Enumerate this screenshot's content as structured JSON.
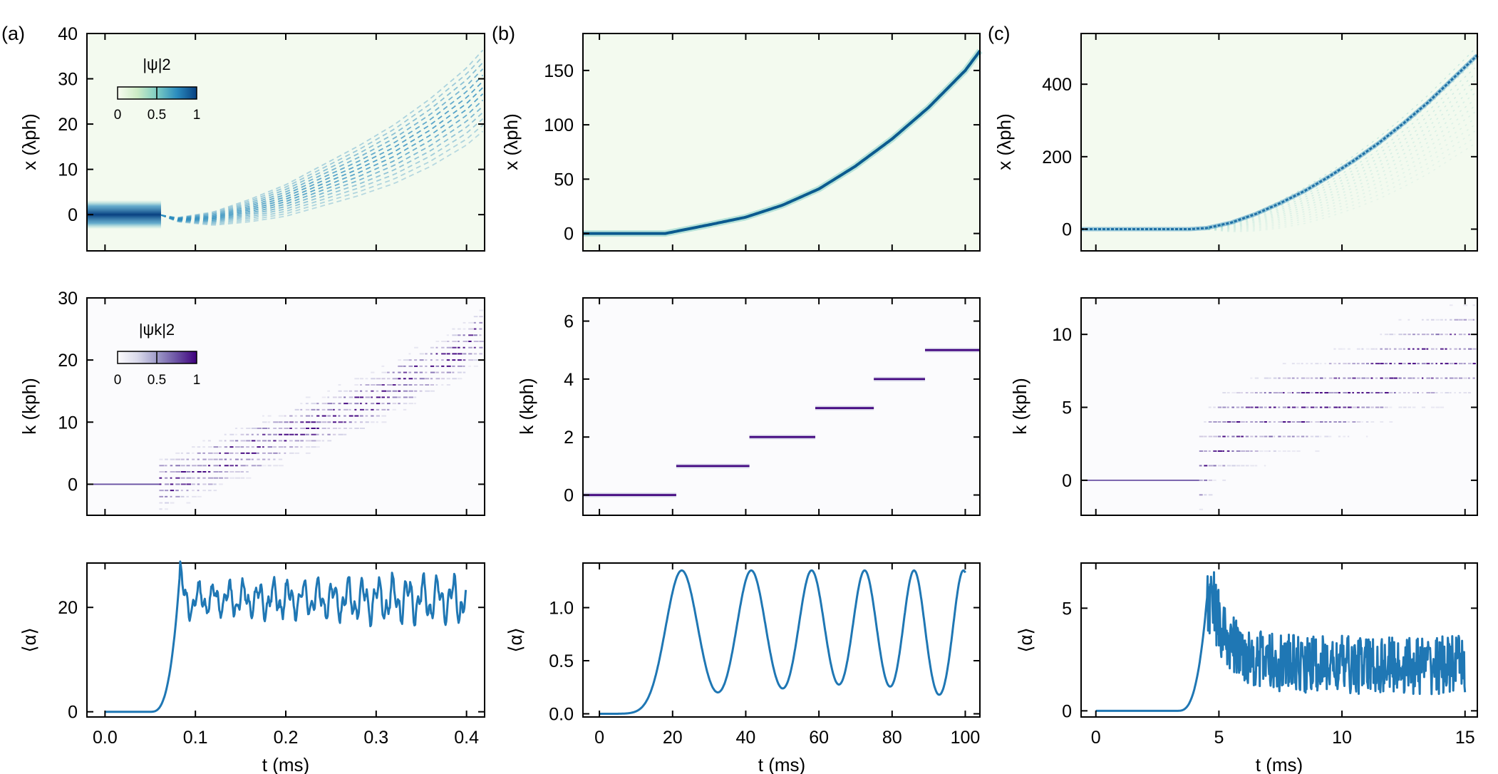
{
  "colors": {
    "line": "#1f77b4",
    "panel_bg_density": "#f3faef",
    "panel_bg_momentum": "#fbfbfd",
    "density_cmap": [
      "#f7fcf0",
      "#ccebc5",
      "#7bccc4",
      "#2b8cbe",
      "#084081"
    ],
    "momentum_cmap": [
      "#fcfbfd",
      "#dadaeb",
      "#9e9ac8",
      "#6a51a3",
      "#3f007d"
    ]
  },
  "chart_data": [
    {
      "id": "a",
      "panel_label": "(a)",
      "xlabel": "t (ms)",
      "xlim": [
        -0.02,
        0.42
      ],
      "xticks": [
        0.0,
        0.1,
        0.2,
        0.3,
        0.4
      ],
      "xtick_labels": [
        "0.0",
        "0.1",
        "0.2",
        "0.3",
        "0.4"
      ],
      "density": {
        "type": "heatmap",
        "ylabel": "x (λph)",
        "ylim": [
          -8,
          40
        ],
        "yticks": [
          0,
          10,
          20,
          30,
          40
        ],
        "ytick_labels": [
          "0",
          "10",
          "20",
          "30",
          "40"
        ],
        "colorbar": {
          "title": "|ψ|2",
          "ticks": [
            "0",
            "0.5",
            "1"
          ]
        },
        "trajectory": {
          "t": [
            0.0,
            0.06,
            0.08,
            0.12,
            0.16,
            0.2,
            0.24,
            0.28,
            0.32,
            0.36,
            0.4,
            0.42
          ],
          "x": [
            0,
            0,
            -1,
            -0.5,
            1.5,
            4,
            7.5,
            11,
            15,
            20,
            26,
            30
          ]
        },
        "spread_max": 9
      },
      "momentum": {
        "type": "heatmap",
        "ylabel": "k (kph)",
        "ylim": [
          -5,
          30
        ],
        "yticks": [
          0,
          10,
          20,
          30
        ],
        "ytick_labels": [
          "0",
          "10",
          "20",
          "30"
        ],
        "colorbar": {
          "title": "|ψk|2",
          "ticks": [
            "0",
            "0.5",
            "1"
          ]
        },
        "line_until": 0.06,
        "k_center": {
          "t": [
            0.06,
            0.1,
            0.15,
            0.2,
            0.25,
            0.3,
            0.35,
            0.4,
            0.42
          ],
          "k": [
            0,
            2,
            5,
            8,
            11,
            14,
            18,
            22,
            25
          ]
        }
      },
      "mean_alpha": {
        "type": "line",
        "ylabel": "⟨α⟩",
        "ylim": [
          -1,
          28.5
        ],
        "yticks": [
          0,
          20
        ],
        "ytick_labels": [
          "0",
          "20"
        ],
        "t_start": 0.0,
        "t_rise": 0.07,
        "t_peak": 0.083,
        "t_end": 0.4,
        "baseline": 0,
        "peak": 27,
        "mean_level": 21.5,
        "osc_amp": 2.8
      }
    },
    {
      "id": "b",
      "panel_label": "(b)",
      "xlabel": "t (ms)",
      "xlim": [
        -4.5,
        104
      ],
      "xticks": [
        0,
        20,
        40,
        60,
        80,
        100
      ],
      "xtick_labels": [
        "0",
        "20",
        "40",
        "60",
        "80",
        "100"
      ],
      "density": {
        "type": "heatmap",
        "ylabel": "x (λph)",
        "ylim": [
          -16,
          184
        ],
        "yticks": [
          0,
          50,
          100,
          150
        ],
        "ytick_labels": [
          "0",
          "50",
          "100",
          "150"
        ],
        "trajectory": {
          "t": [
            0,
            18,
            21,
            30,
            40,
            50,
            60,
            70,
            80,
            90,
            100,
            104
          ],
          "x": [
            0,
            0,
            2,
            8,
            15,
            26,
            41,
            62,
            87,
            116,
            150,
            168
          ]
        }
      },
      "momentum": {
        "type": "heatmap",
        "ylabel": "k (kph)",
        "ylim": [
          -0.7,
          6.8
        ],
        "yticks": [
          0,
          2,
          4,
          6
        ],
        "ytick_labels": [
          "0",
          "2",
          "4",
          "6"
        ],
        "steps": [
          {
            "k": 0,
            "t0": -4.5,
            "t1": 21
          },
          {
            "k": 1,
            "t0": 21,
            "t1": 41
          },
          {
            "k": 2,
            "t0": 41,
            "t1": 59
          },
          {
            "k": 3,
            "t0": 59,
            "t1": 75
          },
          {
            "k": 4,
            "t0": 75,
            "t1": 89
          },
          {
            "k": 5,
            "t0": 89,
            "t1": 104
          }
        ]
      },
      "mean_alpha": {
        "type": "line",
        "ylabel": "⟨α⟩",
        "ylim": [
          -0.03,
          1.42
        ],
        "yticks": [
          0.0,
          0.5,
          1.0
        ],
        "ytick_labels": [
          "0.0",
          "0.5",
          "1.0"
        ],
        "t_start": 0,
        "t_end": 100,
        "peak": 1.35,
        "peaks_t": [
          22.5,
          41.5,
          58,
          72.5,
          86,
          99.5
        ],
        "widths": [
          6.2,
          5.6,
          5.0,
          4.6,
          4.2,
          4.0
        ]
      }
    },
    {
      "id": "c",
      "panel_label": "(c)",
      "xlabel": "t (ms)",
      "xlim": [
        -0.6,
        15.5
      ],
      "xticks": [
        0,
        5,
        10,
        15
      ],
      "xtick_labels": [
        "0",
        "5",
        "10",
        "15"
      ],
      "density": {
        "type": "heatmap",
        "ylabel": "x (λph)",
        "ylim": [
          -60,
          540
        ],
        "yticks": [
          0,
          200,
          400
        ],
        "ytick_labels": [
          "0",
          "200",
          "400"
        ],
        "trajectory": {
          "t": [
            0,
            3.8,
            4.5,
            5.5,
            6.5,
            7.5,
            8.5,
            9.5,
            10.5,
            11.5,
            12.5,
            13.5,
            14.5,
            15.5
          ],
          "x": [
            0,
            0,
            3,
            18,
            42,
            72,
            106,
            146,
            190,
            238,
            292,
            350,
            415,
            480
          ]
        },
        "spread_max": 120
      },
      "momentum": {
        "type": "heatmap",
        "ylabel": "k (kph)",
        "ylim": [
          -2.4,
          12.5
        ],
        "yticks": [
          0,
          5,
          10
        ],
        "ytick_labels": [
          "0",
          "5",
          "10"
        ],
        "line_until": 4.2,
        "k_center": {
          "t": [
            4.2,
            5,
            6,
            7,
            8,
            9,
            10,
            11,
            12,
            13,
            14,
            15.5
          ],
          "k": [
            1,
            3,
            4,
            4.5,
            5,
            5.5,
            6,
            6.5,
            7.5,
            8,
            8.5,
            9
          ]
        }
      },
      "mean_alpha": {
        "type": "line",
        "ylabel": "⟨α⟩",
        "ylim": [
          -0.3,
          7.2
        ],
        "yticks": [
          0,
          5
        ],
        "ytick_labels": [
          "0",
          "5"
        ],
        "t_start": 0,
        "t_rise": 3.3,
        "t_peak": 4.5,
        "t_end": 15,
        "peak": 6.8,
        "mean_level": 1.8,
        "noise_amp": 1.3
      }
    }
  ]
}
